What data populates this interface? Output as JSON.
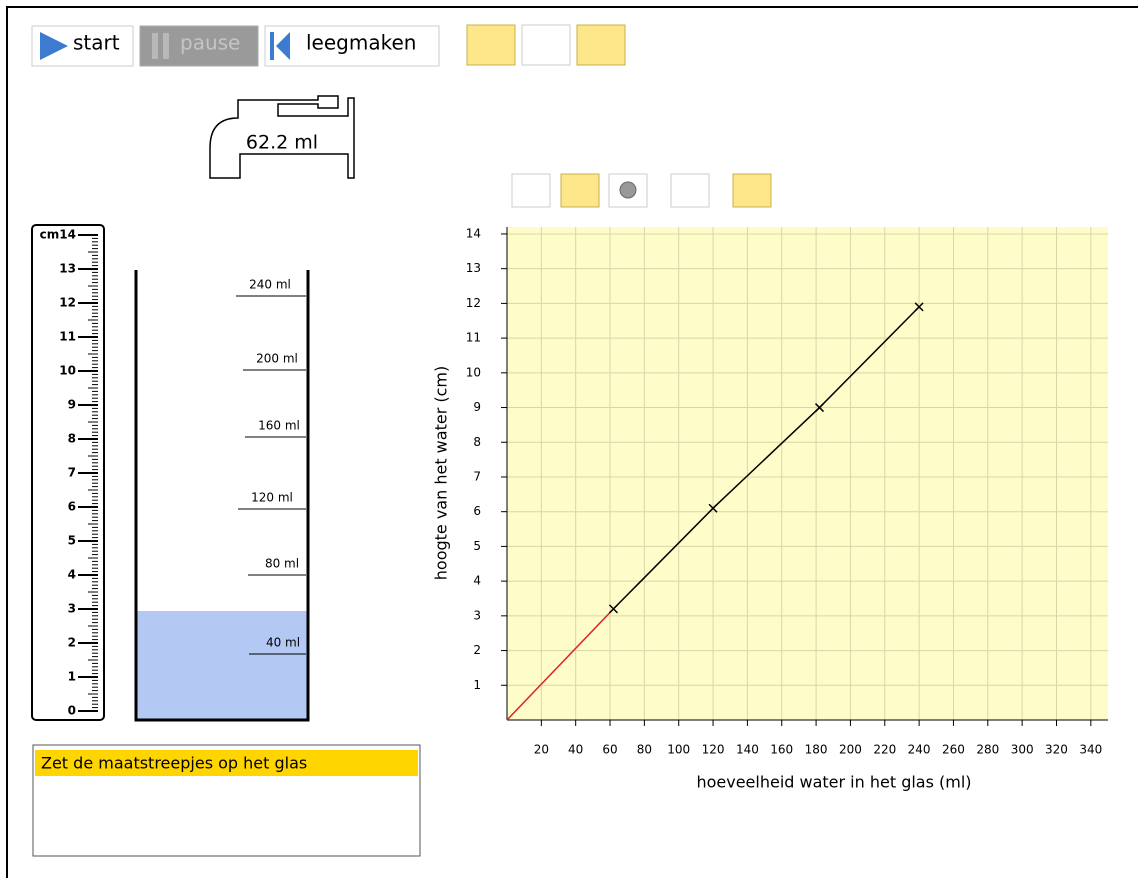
{
  "toolbar": {
    "start": "start",
    "pause": "pause",
    "clear": "leegmaken"
  },
  "tap": {
    "amount": "62.2 ml"
  },
  "ruler": {
    "labels": [
      "cm14",
      13,
      12,
      11,
      10,
      9,
      8,
      7,
      6,
      5,
      4,
      3,
      2,
      1,
      0
    ]
  },
  "glass": {
    "marks": [
      "240 ml",
      "200 ml",
      "160 ml",
      "120 ml",
      "80 ml",
      "40 ml"
    ]
  },
  "message": {
    "text": "Zet de maatstreepjes op het glas"
  },
  "graph": {
    "xlabel": "hoeveelheid water in het glas (ml)",
    "ylabel": "hoogte van het water (cm)",
    "xlim": [
      0,
      350
    ],
    "ylim": [
      0,
      14.2
    ],
    "xticks": [
      20,
      40,
      60,
      80,
      100,
      120,
      140,
      160,
      180,
      200,
      220,
      240,
      260,
      280,
      300,
      320,
      340
    ],
    "yticks": [
      1,
      2,
      3,
      4,
      5,
      6,
      7,
      8,
      9,
      10,
      11,
      12,
      13,
      14
    ],
    "points": {
      "x": [
        62,
        120,
        182,
        240
      ],
      "y": [
        3.2,
        6.1,
        9,
        11.9
      ]
    }
  }
}
